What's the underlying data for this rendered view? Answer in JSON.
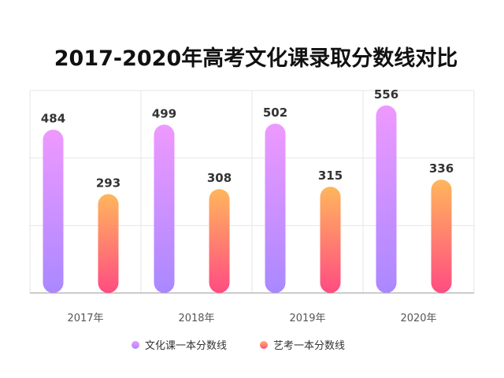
{
  "chart_data": {
    "type": "bar",
    "title": "2017-2020年高考文化课录取分数线对比",
    "xlabel": "",
    "ylabel": "",
    "categories": [
      "2017年",
      "2018年",
      "2019年",
      "2020年"
    ],
    "series": [
      {
        "name": "文化课一本分数线",
        "values": [
          484,
          499,
          502,
          556
        ],
        "colors": [
          "#EE99FF",
          "#AA88FF"
        ]
      },
      {
        "name": "艺考一本分数线",
        "values": [
          293,
          308,
          315,
          336
        ],
        "colors": [
          "#FFB65C",
          "#FF4C82"
        ]
      }
    ],
    "ylim": [
      0,
      600
    ],
    "grid": true,
    "legend": "bottom-center"
  }
}
